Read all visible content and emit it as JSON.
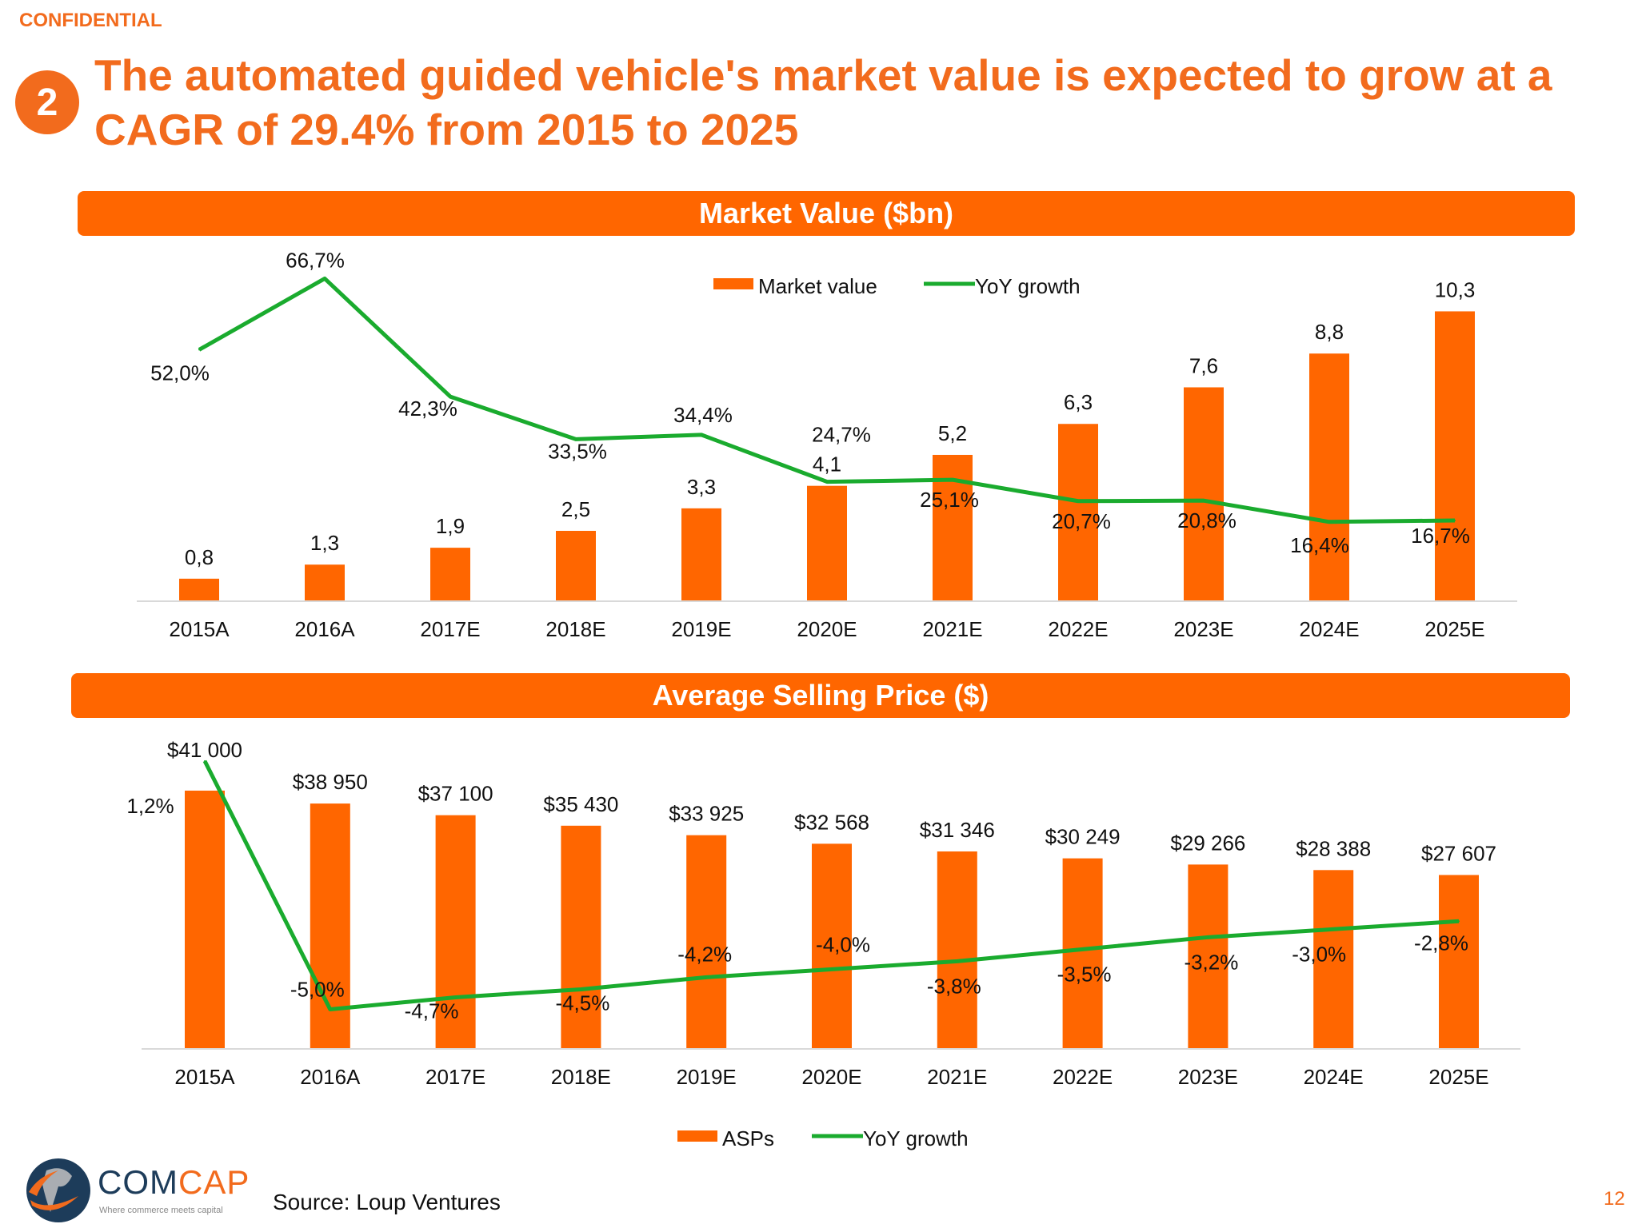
{
  "header": {
    "confidential": "CONFIDENTIAL",
    "section_number": "2",
    "title": "The automated guided vehicle's market value is expected to grow at a CAGR of 29.4% from 2015 to 2025"
  },
  "colors": {
    "accent": "#ff6600",
    "title": "#f26b1d",
    "line": "#1aab2e",
    "axis": "#d9d9d9"
  },
  "chart_data": [
    {
      "type": "bar+line",
      "title": "Market Value ($bn)",
      "categories": [
        "2015A",
        "2016A",
        "2017E",
        "2018E",
        "2019E",
        "2020E",
        "2021E",
        "2022E",
        "2023E",
        "2024E",
        "2025E"
      ],
      "series": [
        {
          "name": "Market value",
          "type": "bar",
          "values": [
            0.8,
            1.3,
            1.9,
            2.5,
            3.3,
            4.1,
            5.2,
            6.3,
            7.6,
            8.8,
            10.3
          ],
          "labels": [
            "0,8",
            "1,3",
            "1,9",
            "2,5",
            "3,3",
            "4,1",
            "5,2",
            "6,3",
            "7,6",
            "8,8",
            "10,3"
          ]
        },
        {
          "name": "YoY growth",
          "type": "line",
          "values": [
            52.0,
            66.7,
            42.3,
            33.5,
            34.4,
            24.7,
            25.1,
            20.7,
            20.8,
            16.4,
            16.7
          ],
          "labels": [
            "52,0%",
            "66,7%",
            "42,3%",
            "33,5%",
            "34,4%",
            "24,7%",
            "25,1%",
            "20,7%",
            "20,8%",
            "16,4%",
            "16,7%"
          ]
        }
      ],
      "legend": "top-center",
      "grid": false
    },
    {
      "type": "bar+line",
      "title": "Average Selling Price ($)",
      "categories": [
        "2015A",
        "2016A",
        "2017E",
        "2018E",
        "2019E",
        "2020E",
        "2021E",
        "2022E",
        "2023E",
        "2024E",
        "2025E"
      ],
      "series": [
        {
          "name": "ASPs",
          "type": "bar",
          "values": [
            41000,
            38950,
            37100,
            35430,
            33925,
            32568,
            31346,
            30249,
            29266,
            28388,
            27607
          ],
          "labels": [
            "$41 000",
            "$38 950",
            "$37 100",
            "$35 430",
            "$33 925",
            "$32 568",
            "$31 346",
            "$30 249",
            "$29 266",
            "$28 388",
            "$27 607"
          ]
        },
        {
          "name": "YoY growth",
          "type": "line",
          "values": [
            1.2,
            -5.0,
            -4.7,
            -4.5,
            -4.2,
            -4.0,
            -3.8,
            -3.5,
            -3.2,
            -3.0,
            -2.8
          ],
          "labels": [
            "1,2%",
            "-5,0%",
            "-4,7%",
            "-4,5%",
            "-4,2%",
            "-4,0%",
            "-3,8%",
            "-3,5%",
            "-3,2%",
            "-3,0%",
            "-2,8%"
          ]
        }
      ],
      "legend": "bottom-center",
      "grid": false
    }
  ],
  "footer": {
    "logo_text_1": "COM",
    "logo_text_2": "CAP",
    "logo_tagline": "Where commerce meets capital",
    "source": "Source: Loup Ventures",
    "page_number": "12"
  }
}
